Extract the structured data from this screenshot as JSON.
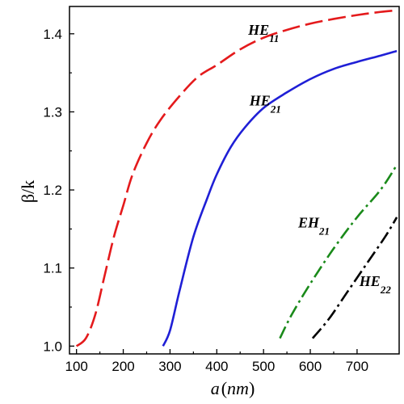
{
  "chart_data": {
    "type": "line",
    "title": "",
    "xlabel": "a(nm)",
    "xlabel_var": "a",
    "xlabel_unit": "nm",
    "ylabel": "β/k",
    "xlim": [
      85,
      790
    ],
    "ylim": [
      0.99,
      1.435
    ],
    "x_ticks": [
      100,
      200,
      300,
      400,
      500,
      600,
      700
    ],
    "y_ticks": [
      1.0,
      1.1,
      1.2,
      1.3,
      1.4
    ],
    "y_tick_labels": [
      "1.0",
      "1.1",
      "1.2",
      "1.3",
      "1.4"
    ],
    "grid": false,
    "legend": "none",
    "series": [
      {
        "name": "HE11",
        "label_main": "HE",
        "label_sub": "11",
        "color": "#e41a1c",
        "dash": "long-dash",
        "points": [
          [
            100,
            1.0
          ],
          [
            120,
            1.01
          ],
          [
            140,
            1.04
          ],
          [
            160,
            1.09
          ],
          [
            180,
            1.14
          ],
          [
            200,
            1.18
          ],
          [
            220,
            1.22
          ],
          [
            250,
            1.26
          ],
          [
            280,
            1.29
          ],
          [
            320,
            1.32
          ],
          [
            360,
            1.345
          ],
          [
            400,
            1.36
          ],
          [
            450,
            1.38
          ],
          [
            500,
            1.395
          ],
          [
            550,
            1.405
          ],
          [
            600,
            1.413
          ],
          [
            650,
            1.419
          ],
          [
            700,
            1.424
          ],
          [
            750,
            1.428
          ],
          [
            785,
            1.43
          ]
        ]
      },
      {
        "name": "HE21",
        "label_main": "HE",
        "label_sub": "21",
        "color": "#1f1fd6",
        "dash": "solid",
        "points": [
          [
            285,
            1.0
          ],
          [
            300,
            1.02
          ],
          [
            320,
            1.07
          ],
          [
            350,
            1.14
          ],
          [
            380,
            1.19
          ],
          [
            400,
            1.22
          ],
          [
            430,
            1.255
          ],
          [
            460,
            1.28
          ],
          [
            500,
            1.305
          ],
          [
            550,
            1.325
          ],
          [
            600,
            1.342
          ],
          [
            650,
            1.355
          ],
          [
            700,
            1.364
          ],
          [
            750,
            1.372
          ],
          [
            785,
            1.378
          ]
        ]
      },
      {
        "name": "EH21",
        "label_main": "EH",
        "label_sub": "21",
        "color": "#1a8a1a",
        "dash": "dash-dot",
        "points": [
          [
            535,
            1.01
          ],
          [
            560,
            1.04
          ],
          [
            600,
            1.08
          ],
          [
            650,
            1.125
          ],
          [
            700,
            1.165
          ],
          [
            750,
            1.2
          ],
          [
            785,
            1.232
          ]
        ]
      },
      {
        "name": "HE22",
        "label_main": "HE",
        "label_sub": "22",
        "color": "#000000",
        "dash": "dash-dot",
        "points": [
          [
            605,
            1.01
          ],
          [
            640,
            1.035
          ],
          [
            680,
            1.07
          ],
          [
            720,
            1.105
          ],
          [
            760,
            1.14
          ],
          [
            785,
            1.165
          ]
        ]
      }
    ],
    "annotations": [
      {
        "series": "HE11",
        "at": [
          467,
          1.399
        ]
      },
      {
        "series": "HE21",
        "at": [
          470,
          1.308
        ]
      },
      {
        "series": "EH21",
        "at": [
          574,
          1.152
        ]
      },
      {
        "series": "HE22",
        "at": [
          705,
          1.077
        ]
      }
    ]
  }
}
